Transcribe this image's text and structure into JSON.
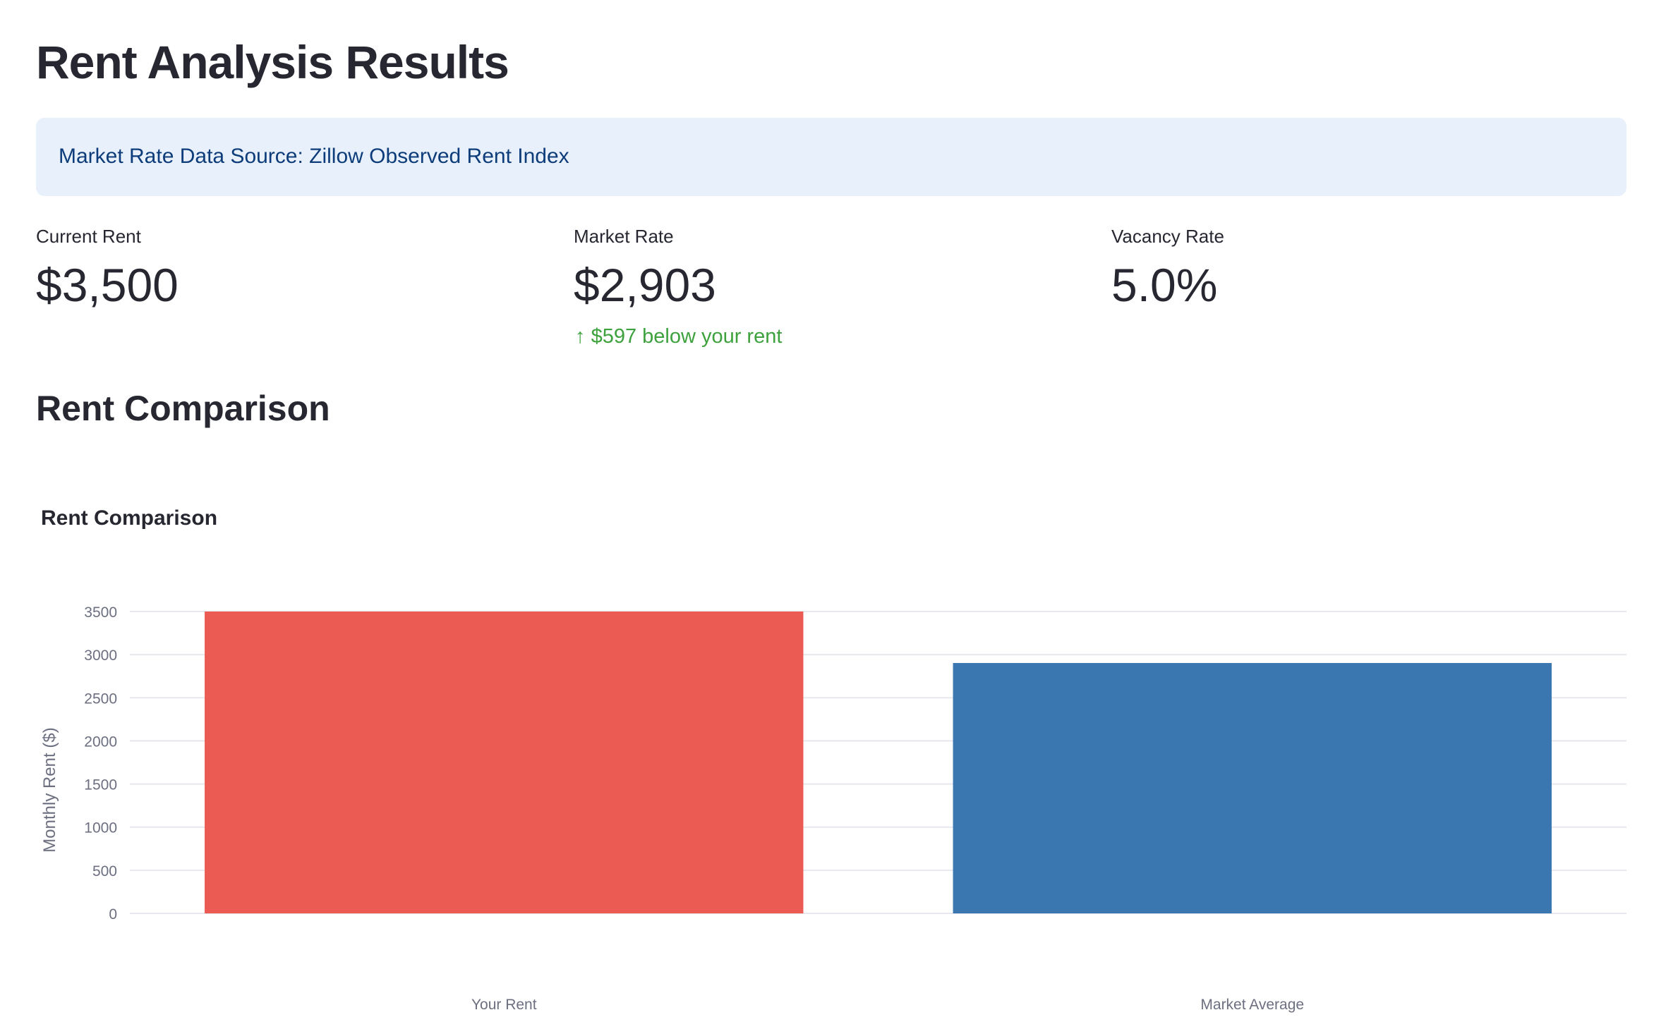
{
  "page": {
    "title": "Rent Analysis Results",
    "info": "Market Rate Data Source: Zillow Observed Rent Index",
    "section_title": "Rent Comparison"
  },
  "metrics": [
    {
      "label": "Current Rent",
      "value": "$3,500"
    },
    {
      "label": "Market Rate",
      "value": "$2,903",
      "delta": "$597 below your rent",
      "delta_icon": "arrow-up-icon"
    },
    {
      "label": "Vacancy Rate",
      "value": "5.0%"
    }
  ],
  "colors": {
    "delta": "#3da13d",
    "your_rent": "#ec5b53",
    "market": "#3a76af"
  },
  "chart_data": {
    "type": "bar",
    "title": "Rent Comparison",
    "xlabel": "",
    "ylabel": "Monthly Rent ($)",
    "categories": [
      "Your Rent",
      "Market Average"
    ],
    "values": [
      3500,
      2903
    ],
    "colors": [
      "#ec5b53",
      "#3a76af"
    ],
    "ylim": [
      0,
      3500
    ],
    "yticks": [
      0,
      500,
      1000,
      1500,
      2000,
      2500,
      3000,
      3500
    ],
    "grid": true
  }
}
